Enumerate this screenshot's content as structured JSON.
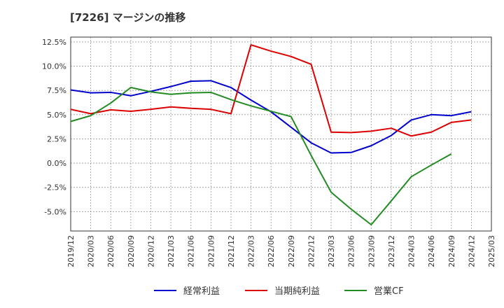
{
  "chart_data": {
    "type": "line",
    "title": "[7226]  マージンの推移",
    "x": [
      "2019/12",
      "2020/03",
      "2020/06",
      "2020/09",
      "2020/12",
      "2021/03",
      "2021/06",
      "2021/09",
      "2021/12",
      "2022/03",
      "2022/06",
      "2022/09",
      "2022/12",
      "2023/03",
      "2023/06",
      "2023/09",
      "2023/12",
      "2024/03",
      "2024/06",
      "2024/09",
      "2024/12",
      "2025/03"
    ],
    "xlabel": "",
    "ylabel": "",
    "ylim": [
      -7.0,
      13.0
    ],
    "yticks": [
      12.5,
      10.0,
      7.5,
      5.0,
      2.5,
      0.0,
      -2.5,
      -5.0
    ],
    "ytick_labels": [
      "12.5%",
      "10.0%",
      "7.5%",
      "5.0%",
      "2.5%",
      "0.0%",
      "-2.5%",
      "-5.0%"
    ],
    "grid": true,
    "legend_position": "bottom",
    "series": [
      {
        "name": "経常利益",
        "color": "#0000cc",
        "values": [
          7.55,
          7.25,
          7.3,
          6.95,
          7.4,
          7.9,
          8.45,
          8.5,
          7.8,
          6.5,
          5.3,
          3.7,
          2.1,
          1.05,
          1.1,
          1.8,
          2.85,
          4.45,
          5.0,
          4.9,
          5.3,
          null
        ]
      },
      {
        "name": "当期純利益",
        "color": "#dd0000",
        "values": [
          5.55,
          5.1,
          5.5,
          5.35,
          5.55,
          5.8,
          5.65,
          5.55,
          5.1,
          12.2,
          11.55,
          11.0,
          10.2,
          3.2,
          3.15,
          3.3,
          3.6,
          2.8,
          3.2,
          4.2,
          4.45,
          null
        ]
      },
      {
        "name": "営業CF",
        "color": "#228b22",
        "values": [
          4.3,
          4.9,
          6.2,
          7.8,
          7.35,
          7.1,
          7.25,
          7.3,
          6.55,
          5.9,
          5.35,
          4.8,
          0.8,
          -3.0,
          -4.75,
          -6.35,
          -3.9,
          -1.4,
          -0.2,
          0.95,
          null,
          null
        ]
      }
    ]
  }
}
